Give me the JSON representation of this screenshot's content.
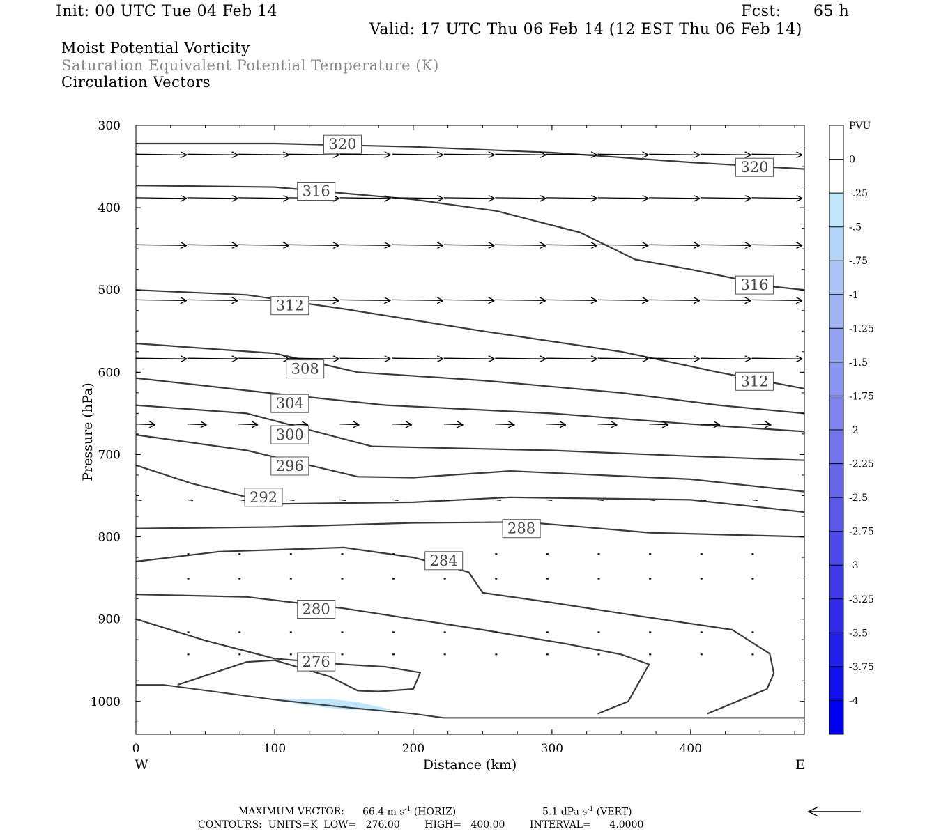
{
  "header": {
    "init": "Init: 00 UTC Tue 04 Feb 14",
    "fcst_label": "Fcst:",
    "fcst_value": "65 h",
    "valid": "Valid: 17 UTC Thu 06 Feb 14 (12 EST Thu 06 Feb 14)"
  },
  "fields": {
    "line1": "Moist Potential Vorticity",
    "line2": "Saturation Equivalent Potential Temperature (K)",
    "line3": "Circulation Vectors"
  },
  "axes": {
    "ylabel": "Pressure (hPa)",
    "xlabel": "Distance (km)",
    "west": "W",
    "east": "E",
    "y_ticks": [
      "300",
      "400",
      "500",
      "600",
      "700",
      "800",
      "900",
      "1000"
    ],
    "x_ticks": [
      "0",
      "100",
      "200",
      "300",
      "400"
    ]
  },
  "colorbar": {
    "title": "PVU",
    "labels": [
      "0",
      "-.25",
      "-.5",
      "-.75",
      "-1",
      "-1.25",
      "-1.5",
      "-1.75",
      "-2",
      "-2.25",
      "-2.5",
      "-2.75",
      "-3",
      "-3.25",
      "-3.5",
      "-3.75",
      "-4"
    ],
    "colors": [
      "#ffffff",
      "#ffffff",
      "#bfe6fa",
      "#b4d4f8",
      "#aac4f6",
      "#a0b4f4",
      "#94a4f2",
      "#8a96f0",
      "#7e86ee",
      "#7276ec",
      "#6666ea",
      "#5a58e8",
      "#4c4ae8",
      "#3e3ae8",
      "#302cea",
      "#2020ec",
      "#1010ee",
      "#0000f0"
    ]
  },
  "footer": {
    "max_vector_label": "MAXIMUM VECTOR:",
    "max_horiz": "66.4 m s",
    "horiz_exp": "-1",
    "horiz_tag": "(HORIZ)",
    "max_vert": "5.1 dPa s",
    "vert_exp": "-1",
    "vert_tag": "(VERT)",
    "contours_line": "CONTOURS:  UNITS=K  LOW=   276.00        HIGH=   400.00        INTERVAL=      4.0000"
  },
  "chart_data": {
    "type": "contour",
    "xlim": [
      0,
      482
    ],
    "ylim": [
      300,
      1040
    ],
    "y_scale": "linear",
    "contour_labels": [
      {
        "text": "320",
        "x": 149,
        "p": 323
      },
      {
        "text": "320",
        "x": 446,
        "p": 351
      },
      {
        "text": "316",
        "x": 130,
        "p": 380
      },
      {
        "text": "316",
        "x": 446,
        "p": 494
      },
      {
        "text": "312",
        "x": 111,
        "p": 519
      },
      {
        "text": "312",
        "x": 446,
        "p": 611
      },
      {
        "text": "308",
        "x": 122,
        "p": 596
      },
      {
        "text": "304",
        "x": 111,
        "p": 638
      },
      {
        "text": "300",
        "x": 111,
        "p": 676
      },
      {
        "text": "296",
        "x": 111,
        "p": 714
      },
      {
        "text": "292",
        "x": 92,
        "p": 752
      },
      {
        "text": "288",
        "x": 278,
        "p": 790
      },
      {
        "text": "284",
        "x": 222,
        "p": 829
      },
      {
        "text": "280",
        "x": 130,
        "p": 888
      },
      {
        "text": "276",
        "x": 130,
        "p": 952
      }
    ],
    "contours": [
      {
        "level": 320,
        "points": [
          [
            0,
            322
          ],
          [
            100,
            322
          ],
          [
            200,
            326
          ],
          [
            300,
            333
          ],
          [
            400,
            345
          ],
          [
            482,
            353
          ]
        ]
      },
      {
        "level": 316,
        "points": [
          [
            0,
            373
          ],
          [
            100,
            375
          ],
          [
            200,
            390
          ],
          [
            260,
            404
          ],
          [
            320,
            430
          ],
          [
            360,
            463
          ],
          [
            400,
            475
          ],
          [
            460,
            496
          ],
          [
            482,
            500
          ]
        ]
      },
      {
        "level": 312,
        "points": [
          [
            0,
            500
          ],
          [
            80,
            506
          ],
          [
            150,
            523
          ],
          [
            250,
            550
          ],
          [
            350,
            575
          ],
          [
            420,
            600
          ],
          [
            482,
            620
          ]
        ]
      },
      {
        "level": 308,
        "points": [
          [
            0,
            565
          ],
          [
            100,
            577
          ],
          [
            160,
            600
          ],
          [
            250,
            610
          ],
          [
            350,
            625
          ],
          [
            420,
            640
          ],
          [
            482,
            650
          ]
        ]
      },
      {
        "level": 304,
        "points": [
          [
            0,
            607
          ],
          [
            100,
            626
          ],
          [
            180,
            640
          ],
          [
            300,
            650
          ],
          [
            400,
            663
          ],
          [
            482,
            672
          ]
        ]
      },
      {
        "level": 300,
        "points": [
          [
            0,
            640
          ],
          [
            80,
            650
          ],
          [
            170,
            690
          ],
          [
            300,
            695
          ],
          [
            400,
            702
          ],
          [
            482,
            707
          ]
        ]
      },
      {
        "level": 296,
        "points": [
          [
            0,
            676
          ],
          [
            80,
            695
          ],
          [
            160,
            727
          ],
          [
            200,
            728
          ],
          [
            270,
            720
          ],
          [
            400,
            730
          ],
          [
            482,
            745
          ]
        ]
      },
      {
        "level": 292,
        "points": [
          [
            0,
            713
          ],
          [
            40,
            735
          ],
          [
            100,
            760
          ],
          [
            200,
            758
          ],
          [
            270,
            752
          ],
          [
            400,
            755
          ],
          [
            482,
            770
          ]
        ]
      },
      {
        "level": 288,
        "points": [
          [
            0,
            790
          ],
          [
            100,
            788
          ],
          [
            200,
            783
          ],
          [
            280,
            782
          ],
          [
            370,
            795
          ],
          [
            482,
            800
          ]
        ]
      },
      {
        "level": 284,
        "points": [
          [
            0,
            830
          ],
          [
            60,
            818
          ],
          [
            150,
            813
          ],
          [
            200,
            825
          ],
          [
            240,
            843
          ],
          [
            250,
            868
          ],
          [
            300,
            880
          ],
          [
            350,
            893
          ],
          [
            430,
            913
          ],
          [
            457,
            942
          ],
          [
            460,
            966
          ],
          [
            455,
            985
          ],
          [
            412,
            1015
          ]
        ]
      },
      {
        "level": 280,
        "points": [
          [
            0,
            870
          ],
          [
            80,
            873
          ],
          [
            150,
            887
          ],
          [
            250,
            913
          ],
          [
            310,
            930
          ],
          [
            350,
            943
          ],
          [
            370,
            955
          ],
          [
            355,
            1000
          ],
          [
            333,
            1015
          ]
        ]
      },
      {
        "level": 276,
        "points": [
          [
            0,
            900
          ],
          [
            50,
            926
          ],
          [
            100,
            948
          ],
          [
            150,
            955
          ],
          [
            180,
            958
          ],
          [
            205,
            965
          ],
          [
            200,
            985
          ],
          [
            175,
            988
          ],
          [
            160,
            987
          ],
          [
            140,
            970
          ],
          [
            100,
            950
          ],
          [
            80,
            952
          ],
          [
            30,
            980
          ]
        ]
      },
      {
        "level": "terrain",
        "points": [
          [
            0,
            980
          ],
          [
            20,
            980
          ],
          [
            100,
            998
          ],
          [
            150,
            1007
          ],
          [
            200,
            1015
          ],
          [
            222,
            1020
          ],
          [
            482,
            1020
          ]
        ]
      }
    ],
    "shaded_regions": [
      {
        "pvu_range": "-.25 to -.5",
        "points": [
          [
            100,
            997
          ],
          [
            140,
            997
          ],
          [
            160,
            1001
          ],
          [
            185,
            1010
          ],
          [
            170,
            1011
          ],
          [
            150,
            1010
          ],
          [
            120,
            1004
          ]
        ]
      }
    ],
    "vector_rows": [
      {
        "p": 335,
        "x": [
          0,
          37,
          74,
          110,
          147,
          185,
          222,
          259,
          296,
          333,
          370,
          407,
          444
        ],
        "u": [
          52,
          52,
          52,
          52,
          52,
          52,
          52,
          52,
          52,
          52,
          52,
          52,
          52
        ]
      },
      {
        "p": 388,
        "x": [
          0,
          37,
          74,
          110,
          147,
          185,
          222,
          259,
          296,
          333,
          370,
          407,
          444
        ],
        "u": [
          52,
          52,
          52,
          52,
          52,
          52,
          52,
          52,
          52,
          52,
          52,
          52,
          52
        ]
      },
      {
        "p": 445,
        "x": [
          0,
          37,
          74,
          110,
          147,
          185,
          222,
          259,
          296,
          333,
          370,
          407,
          444
        ],
        "u": [
          52,
          52,
          52,
          52,
          52,
          52,
          52,
          52,
          52,
          52,
          52,
          52,
          52
        ]
      },
      {
        "p": 512,
        "x": [
          0,
          37,
          74,
          110,
          147,
          185,
          222,
          259,
          296,
          333,
          370,
          407,
          444
        ],
        "u": [
          52,
          52,
          52,
          52,
          52,
          52,
          52,
          52,
          52,
          52,
          52,
          52,
          52
        ]
      },
      {
        "p": 583,
        "x": [
          0,
          37,
          74,
          110,
          147,
          185,
          222,
          259,
          296,
          333,
          370,
          407,
          444
        ],
        "u": [
          52,
          52,
          52,
          52,
          52,
          52,
          52,
          52,
          52,
          52,
          52,
          52,
          52
        ]
      },
      {
        "p": 663,
        "x": [
          0,
          37,
          74,
          110,
          147,
          185,
          222,
          259,
          296,
          333,
          370,
          407,
          444
        ],
        "u": [
          20,
          20,
          20,
          20,
          20,
          20,
          20,
          20,
          20,
          20,
          20,
          20,
          20
        ]
      },
      {
        "p": 755,
        "x": [
          0,
          37,
          74,
          110,
          147,
          185,
          222,
          259,
          296,
          333,
          370,
          407,
          444
        ],
        "u": [
          6,
          6,
          6,
          6,
          6,
          6,
          6,
          6,
          6,
          6,
          6,
          6,
          6
        ]
      }
    ]
  }
}
